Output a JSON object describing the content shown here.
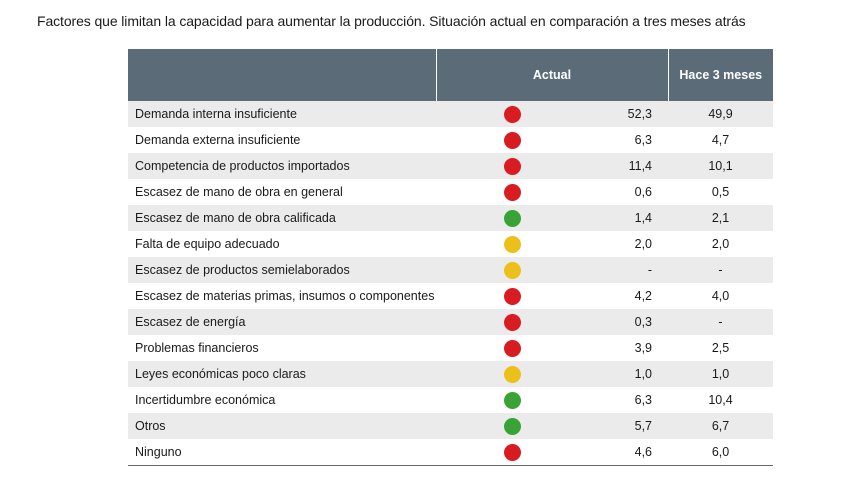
{
  "title": "Factores que limitan la capacidad para aumentar la producción. Situación actual en comparación a tres meses atrás",
  "colors": {
    "header_bg": "#5b6b78",
    "red": "#d91c21",
    "green": "#3aa335",
    "yellow": "#ecc01a",
    "row_alt": "#ebebeb"
  },
  "table": {
    "headers": {
      "factor": "",
      "actual": "Actual",
      "previous": "Hace 3 meses"
    },
    "rows": [
      {
        "factor": "Demanda interna insuficiente",
        "status": "red",
        "actual": "52,3",
        "previous": "49,9"
      },
      {
        "factor": "Demanda externa insuficiente",
        "status": "red",
        "actual": "6,3",
        "previous": "4,7"
      },
      {
        "factor": "Competencia de productos importados",
        "status": "red",
        "actual": "11,4",
        "previous": "10,1"
      },
      {
        "factor": "Escasez de mano de obra en general",
        "status": "red",
        "actual": "0,6",
        "previous": "0,5"
      },
      {
        "factor": "Escasez de mano de obra calificada",
        "status": "green",
        "actual": "1,4",
        "previous": "2,1"
      },
      {
        "factor": "Falta de equipo adecuado",
        "status": "yellow",
        "actual": "2,0",
        "previous": "2,0"
      },
      {
        "factor": "Escasez de productos semielaborados",
        "status": "yellow",
        "actual": "-",
        "previous": "-"
      },
      {
        "factor": "Escasez de materias primas, insumos o componentes",
        "status": "red",
        "actual": "4,2",
        "previous": "4,0"
      },
      {
        "factor": "Escasez de energía",
        "status": "red",
        "actual": "0,3",
        "previous": "-"
      },
      {
        "factor": "Problemas financieros",
        "status": "red",
        "actual": "3,9",
        "previous": "2,5"
      },
      {
        "factor": "Leyes económicas poco claras",
        "status": "yellow",
        "actual": "1,0",
        "previous": "1,0"
      },
      {
        "factor": "Incertidumbre económica",
        "status": "green",
        "actual": "6,3",
        "previous": "10,4"
      },
      {
        "factor": "Otros",
        "status": "green",
        "actual": "5,7",
        "previous": "6,7"
      },
      {
        "factor": "Ninguno",
        "status": "red",
        "actual": "4,6",
        "previous": "6,0"
      }
    ]
  }
}
